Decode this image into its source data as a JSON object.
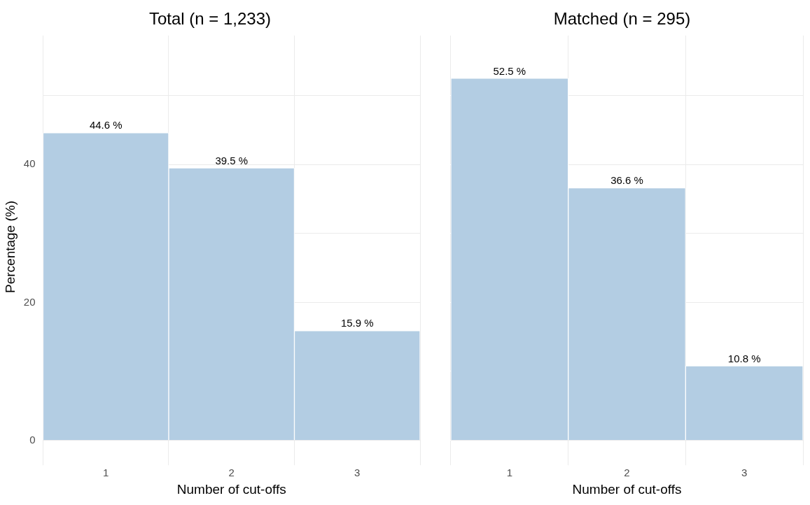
{
  "chart_data": [
    {
      "type": "bar",
      "title": "Total (n = 1,233)",
      "xlabel": "Number of cut-offs",
      "ylabel": "Percentage (%)",
      "categories": [
        "1",
        "2",
        "3"
      ],
      "values": [
        44.6,
        39.5,
        15.9
      ],
      "value_labels": [
        "44.6 %",
        "39.5 %",
        "15.9 %"
      ],
      "color": "#b3cde3",
      "ylim": [
        -2.6,
        58.7
      ],
      "yticks": [
        0,
        {
          "value": 10,
          "label": null
        },
        20,
        {
          "value": 30,
          "label": null
        },
        40,
        {
          "value": 50,
          "label": null
        }
      ],
      "grid": true
    },
    {
      "type": "bar",
      "title": "Matched (n = 295)",
      "xlabel": "Number of cut-offs",
      "categories": [
        "1",
        "2",
        "3"
      ],
      "values": [
        52.5,
        36.6,
        10.8
      ],
      "value_labels": [
        "52.5 %",
        "36.6 %",
        "10.8 %"
      ],
      "color": "#b3cde3",
      "ylim": [
        -2.6,
        58.7
      ],
      "yticks": [
        0,
        {
          "value": 10,
          "label": null
        },
        20,
        {
          "value": 30,
          "label": null
        },
        40,
        {
          "value": 50,
          "label": null
        }
      ],
      "grid": true,
      "tick_labels": "x"
    }
  ]
}
